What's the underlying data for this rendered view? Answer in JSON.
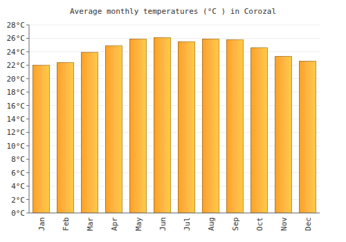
{
  "chart_data": {
    "type": "bar",
    "title": "Average monthly temperatures (°C ) in Corozal",
    "categories": [
      "Jan",
      "Feb",
      "Mar",
      "Apr",
      "May",
      "Jun",
      "Jul",
      "Aug",
      "Sep",
      "Oct",
      "Nov",
      "Dec"
    ],
    "values": [
      22.0,
      22.4,
      23.9,
      24.9,
      25.9,
      26.1,
      25.5,
      25.9,
      25.8,
      24.6,
      23.3,
      22.6
    ],
    "color": "#ffa020",
    "ylim": [
      0,
      28
    ],
    "yticks": [
      {
        "value": 0,
        "label": "0°C"
      },
      {
        "value": 2,
        "label": "2°C"
      },
      {
        "value": 4,
        "label": "4°C"
      },
      {
        "value": 6,
        "label": "6°C"
      },
      {
        "value": 8,
        "label": "8°C"
      },
      {
        "value": 10,
        "label": "10°C"
      },
      {
        "value": 12,
        "label": "12°C"
      },
      {
        "value": 14,
        "label": "14°C"
      },
      {
        "value": 16,
        "label": "16°C"
      },
      {
        "value": 18,
        "label": "18°C"
      },
      {
        "value": 20,
        "label": "20°C"
      },
      {
        "value": 22,
        "label": "22°C"
      },
      {
        "value": 24,
        "label": "24°C"
      },
      {
        "value": 26,
        "label": "26°C"
      },
      {
        "value": 28,
        "label": "28°C"
      }
    ],
    "grid": true
  }
}
